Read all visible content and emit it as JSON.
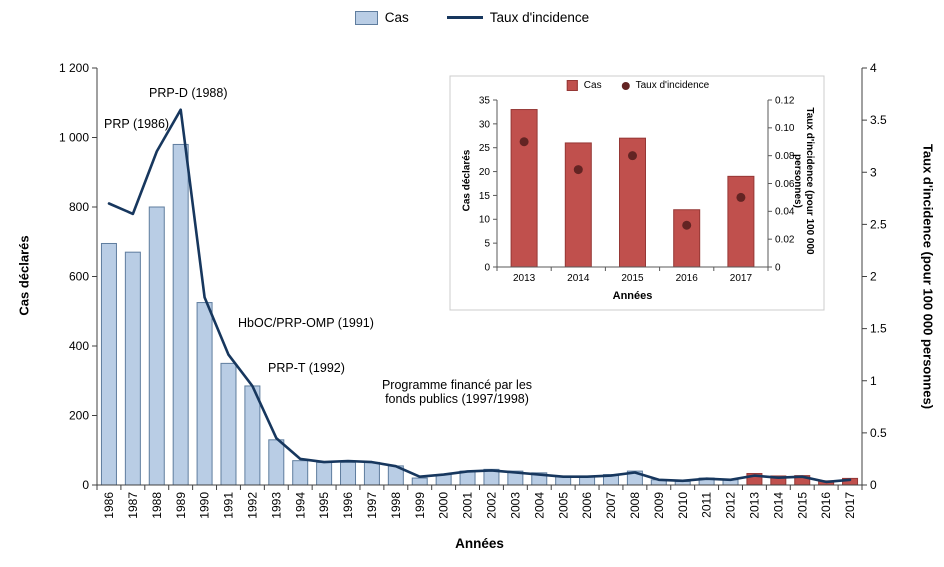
{
  "chart_data": [
    {
      "id": "main",
      "type": "bar",
      "subtype": "bar+line-dual-axis",
      "categories": [
        "1986",
        "1987",
        "1988",
        "1989",
        "1990",
        "1991",
        "1992",
        "1993",
        "1994",
        "1995",
        "1996",
        "1997",
        "1998",
        "1999",
        "2000",
        "2001",
        "2002",
        "2003",
        "2004",
        "2005",
        "2006",
        "2007",
        "2008",
        "2009",
        "2010",
        "2011",
        "2012",
        "2013",
        "2014",
        "2015",
        "2016",
        "2017"
      ],
      "series": [
        {
          "name": "Cas",
          "type": "bar",
          "axis": "left",
          "values": [
            695,
            670,
            800,
            980,
            525,
            350,
            285,
            130,
            70,
            65,
            65,
            65,
            55,
            20,
            30,
            40,
            45,
            40,
            35,
            25,
            25,
            30,
            40,
            15,
            10,
            20,
            15,
            33,
            26,
            27,
            12,
            19
          ]
        },
        {
          "name": "Taux d'incidence",
          "type": "line",
          "axis": "right",
          "values": [
            2.7,
            2.6,
            3.2,
            3.6,
            1.8,
            1.25,
            0.95,
            0.45,
            0.25,
            0.22,
            0.23,
            0.22,
            0.18,
            0.08,
            0.1,
            0.13,
            0.14,
            0.12,
            0.1,
            0.08,
            0.08,
            0.09,
            0.12,
            0.05,
            0.04,
            0.06,
            0.05,
            0.09,
            0.07,
            0.08,
            0.03,
            0.05
          ]
        }
      ],
      "left_ylabel": "Cas déclarés",
      "right_ylabel": "Taux d'incidence (pour 100 000 personnes)",
      "xlabel": "Années",
      "left_ylim": [
        0,
        1200
      ],
      "left_step": 200,
      "right_ylim": [
        0,
        4
      ],
      "right_step": 0.5,
      "grid": false,
      "legend_position": "top",
      "bar_fill": "#b9cde5",
      "bar_stroke": "#5f7d9e",
      "highlight_from_index": 27,
      "highlight_fill": "#c0504d",
      "highlight_stroke": "#953735",
      "line_color": "#17375e",
      "annotations": [
        {
          "text": "PRP (1986)"
        },
        {
          "text": "PRP-D (1988)"
        },
        {
          "text": "HbOC/PRP-OMP (1991)"
        },
        {
          "text": "PRP-T (1992)"
        },
        {
          "text": "Programme financé par les\nfonds publics (1997/1998)"
        }
      ]
    },
    {
      "id": "inset",
      "type": "bar",
      "subtype": "bar+point-dual-axis",
      "categories": [
        "2013",
        "2014",
        "2015",
        "2016",
        "2017"
      ],
      "series": [
        {
          "name": "Cas",
          "type": "bar",
          "axis": "left",
          "values": [
            33,
            26,
            27,
            12,
            19
          ]
        },
        {
          "name": "Taux d'incidence",
          "type": "point",
          "axis": "right",
          "values": [
            0.09,
            0.07,
            0.08,
            0.03,
            0.05
          ]
        }
      ],
      "left_ylabel": "Cas déclarés",
      "right_ylabel": "Taux d'incidence (pour 100 000\npersonnes)",
      "xlabel": "Années",
      "left_ylim": [
        0,
        35
      ],
      "left_step": 5,
      "right_ylim": [
        0,
        0.12
      ],
      "right_step": 0.02,
      "grid": false,
      "legend_position": "top",
      "bar_fill": "#c0504d",
      "bar_stroke": "#953735",
      "point_color": "#632423"
    }
  ]
}
